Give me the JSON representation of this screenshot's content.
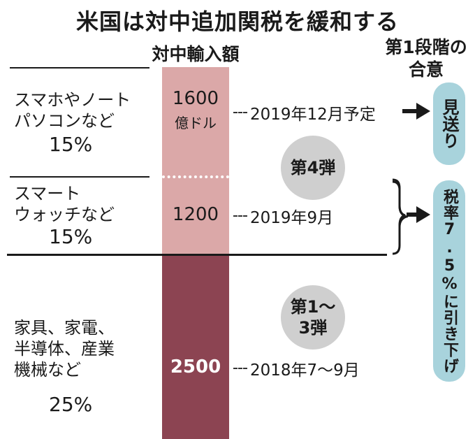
{
  "title": "米国は対中追加関税を緩和する",
  "column_header": "対中輸入額",
  "agreement_header_line1": "第1段階の",
  "agreement_header_line2": "合意",
  "rows": [
    {
      "label_line1": "スマホやノート",
      "label_line2": "パソコンなど",
      "rate": "15%",
      "amount": "1600",
      "amount_unit": "億ドル",
      "date": "2019年12月予定"
    },
    {
      "label_line1": "スマート",
      "label_line2": "ウォッチなど",
      "rate": "15%",
      "amount": "1200",
      "date": "2019年9月"
    },
    {
      "label_line1": "家具、家電、",
      "label_line2": "半導体、産業",
      "label_line3": "機械など",
      "rate": "25%",
      "amount": "2500",
      "date": "2018年7〜9月"
    }
  ],
  "tranche_4": "第4弾",
  "tranche_1_3_line1": "第1〜",
  "tranche_1_3_line2": "3弾",
  "outcome_1": "見送り",
  "outcome_2": "税率7.5%に引き下げ",
  "colors": {
    "bar_light": "#dba8a8",
    "bar_dark": "#8c4452",
    "pill": "#a8d3dc",
    "circle": "#cfcfcf"
  }
}
